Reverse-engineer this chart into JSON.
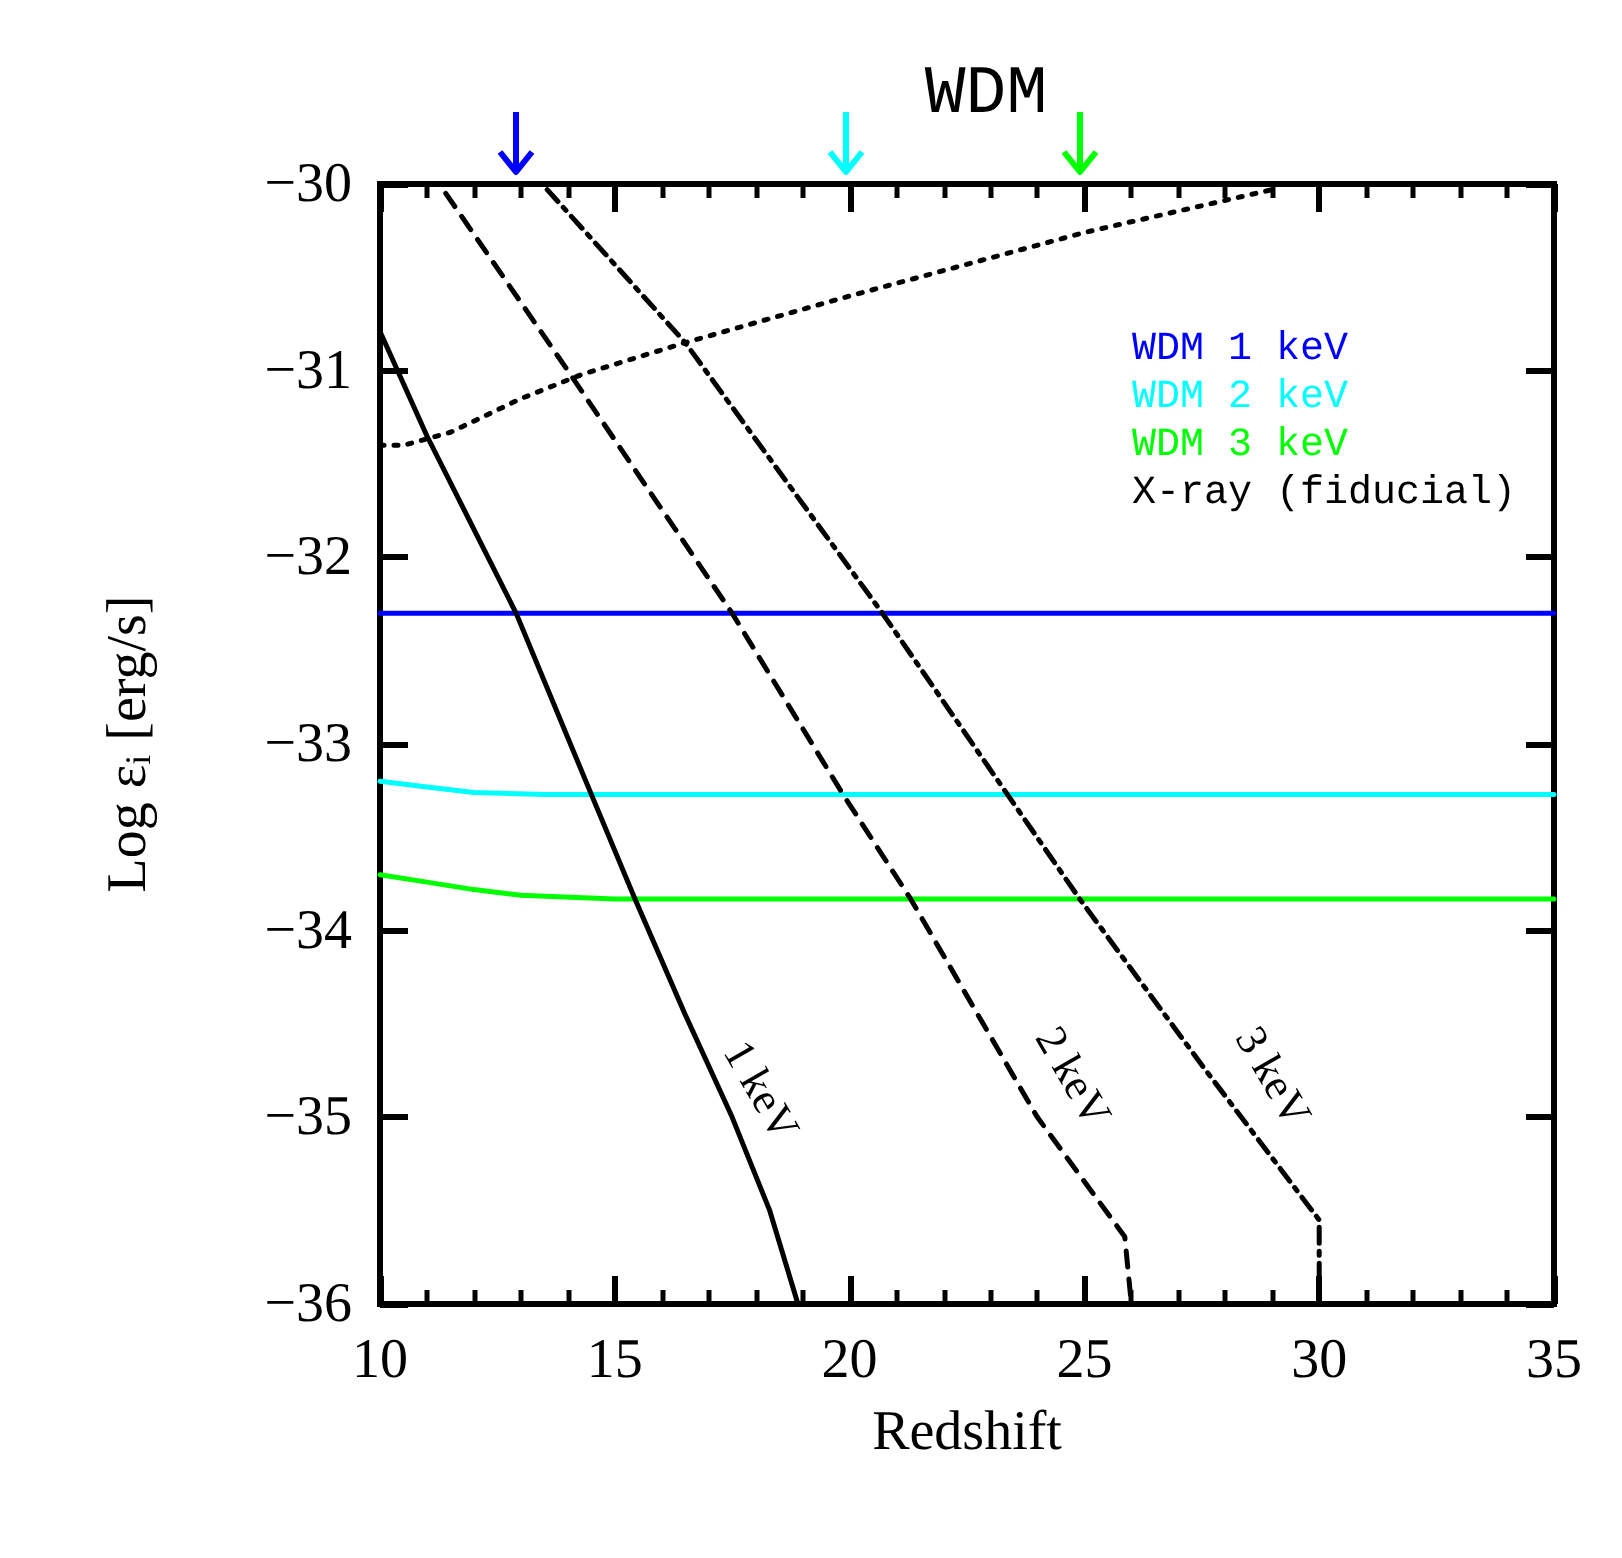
{
  "chart_data": {
    "type": "line",
    "title": "WDM",
    "xlabel": "Redshift",
    "ylabel": "Log ε$_{i}$ [erg/s]",
    "xlim": [
      10,
      35
    ],
    "xticks": [
      10,
      15,
      20,
      25,
      30,
      35
    ],
    "ylim": [
      -36,
      -30
    ],
    "yticks": [
      -36,
      -35,
      -34,
      -33,
      -32,
      -31,
      -30
    ],
    "grid": false,
    "legend": "top right",
    "marker": "none",
    "series": [
      {
        "name": "WDM 1 keV",
        "color": "#0000ff",
        "x": [
          10,
          35
        ],
        "values": [
          -32.3,
          -32.3
        ]
      },
      {
        "name": "WDM 2 keV",
        "color": "#00ffff",
        "x": [
          10,
          11,
          12,
          13.5,
          35
        ],
        "values": [
          -33.2,
          -33.23,
          -33.26,
          -33.27,
          -33.27
        ]
      },
      {
        "name": "WDM 3 keV",
        "color": "#00ff00",
        "x": [
          10,
          11,
          12,
          13,
          15,
          35
        ],
        "values": [
          -33.7,
          -33.74,
          -33.78,
          -33.81,
          -33.83,
          -33.83
        ]
      },
      {
        "name": "X-ray (fiducial)",
        "color": "#000000",
        "line_style": "solid",
        "x": [
          10,
          11,
          12,
          12.9,
          14.5,
          15.43,
          16.5,
          17.5,
          18.3,
          18.9
        ],
        "values": [
          -30.79,
          -31.35,
          -31.85,
          -32.3,
          -33.27,
          -33.83,
          -34.45,
          -35.0,
          -35.5,
          -36
        ]
      },
      {
        "color": "#000000",
        "line_style": "dashed",
        "x": [
          11.4,
          14,
          17.5,
          19.86,
          21.3,
          24.0,
          25.86,
          26.0
        ],
        "values": [
          -30.05,
          -31.0,
          -32.3,
          -33.27,
          -33.83,
          -35.0,
          -35.64,
          -36
        ]
      },
      {
        "color": "#000000",
        "line_style": "dashdot",
        "x": [
          13.56,
          16.5,
          20.7,
          23.36,
          24.9,
          27.5,
          30.0,
          30.0
        ],
        "values": [
          -30.03,
          -30.85,
          -32.3,
          -33.27,
          -33.83,
          -34.72,
          -35.55,
          -36
        ]
      },
      {
        "color": "#000000",
        "line_style": "dotted",
        "x": [
          10,
          10.5,
          11.5,
          13,
          14.3,
          16.5,
          20,
          25,
          29
        ],
        "values": [
          -31.4,
          -31.4,
          -31.33,
          -31.15,
          -31.02,
          -30.85,
          -30.6,
          -30.26,
          -30.03
        ]
      }
    ],
    "annotations": [
      "1 keV",
      "2 keV",
      "3 keV"
    ]
  }
}
